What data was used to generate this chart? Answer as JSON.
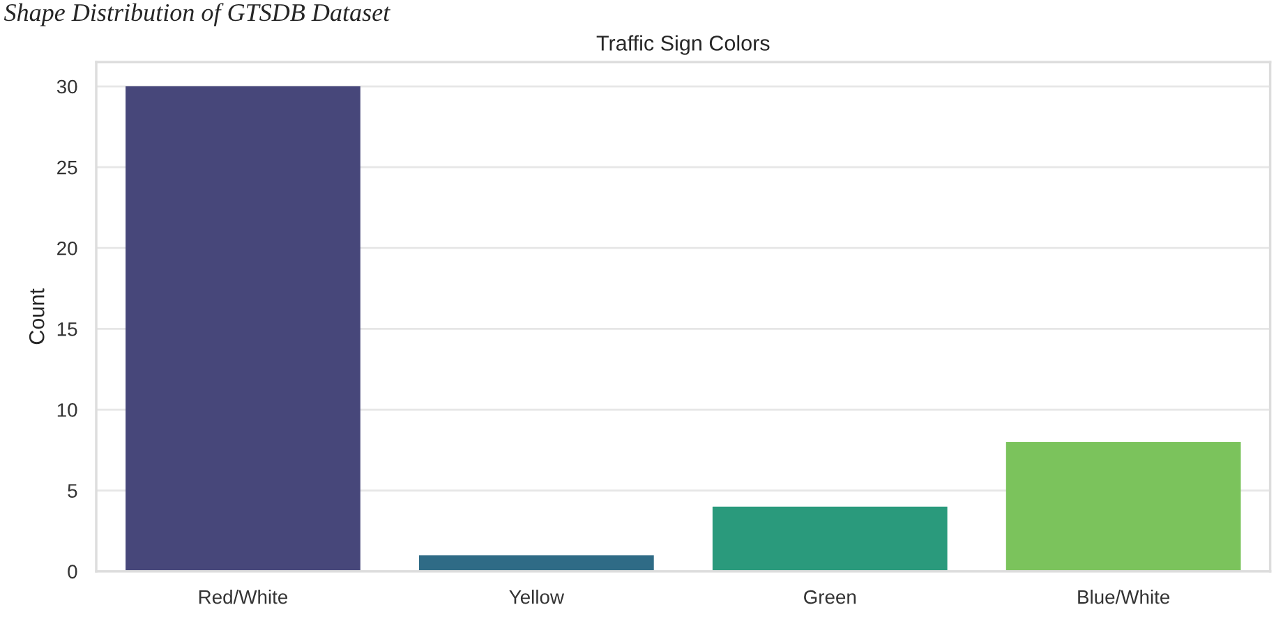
{
  "chart_data": {
    "type": "bar",
    "title": "Traffic Sign Colors",
    "ylabel": "Count",
    "annotations": [
      "Shape Distribution of GTSDB Dataset"
    ],
    "categories": [
      "Red/White",
      "Yellow",
      "Green",
      "Blue/White"
    ],
    "values": [
      30,
      1,
      4,
      8
    ],
    "colors": [
      "#47477a",
      "#2f6b86",
      "#2a9a7c",
      "#7bc35c"
    ],
    "ylim": [
      0,
      31.5
    ],
    "yticks": [
      0,
      5,
      10,
      15,
      20,
      25,
      30
    ],
    "grid": "y"
  }
}
